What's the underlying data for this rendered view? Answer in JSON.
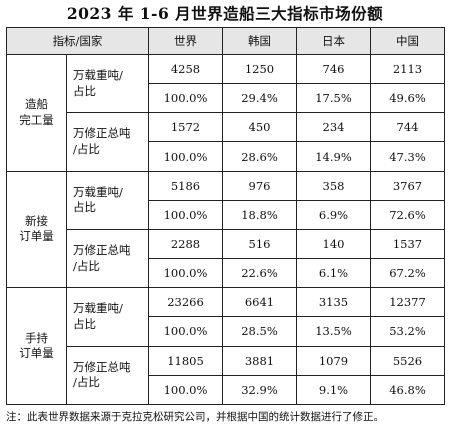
{
  "title": "2023 年 1-6 月世界造船三大指标市场份额",
  "headers": [
    "指标/国家",
    "世界",
    "韩国",
    "日本",
    "中国"
  ],
  "groups": [
    {
      "label": "造船\n完工量",
      "subs": [
        {
          "label": "万载重吨/\n占比",
          "values": [
            "4258",
            "1250",
            "746",
            "2113"
          ],
          "shares": [
            "100.0%",
            "29.4%",
            "17.5%",
            "49.6%"
          ]
        },
        {
          "label": "万修正总吨\n/占比",
          "values": [
            "1572",
            "450",
            "234",
            "744"
          ],
          "shares": [
            "100.0%",
            "28.6%",
            "14.9%",
            "47.3%"
          ]
        }
      ]
    },
    {
      "label": "新接\n订单量",
      "subs": [
        {
          "label": "万载重吨/\n占比",
          "values": [
            "5186",
            "976",
            "358",
            "3767"
          ],
          "shares": [
            "100.0%",
            "18.8%",
            "6.9%",
            "72.6%"
          ]
        },
        {
          "label": "万修正总吨\n/占比",
          "values": [
            "2288",
            "516",
            "140",
            "1537"
          ],
          "shares": [
            "100.0%",
            "22.6%",
            "6.1%",
            "67.2%"
          ]
        }
      ]
    },
    {
      "label": "手持\n订单量",
      "subs": [
        {
          "label": "万载重吨/\n占比",
          "values": [
            "23266",
            "6641",
            "3135",
            "12377"
          ],
          "shares": [
            "100.0%",
            "28.5%",
            "13.5%",
            "53.2%"
          ]
        },
        {
          "label": "万修正总吨\n/占比",
          "values": [
            "11805",
            "3881",
            "1079",
            "5526"
          ],
          "shares": [
            "100.0%",
            "32.9%",
            "9.1%",
            "46.8%"
          ]
        }
      ]
    }
  ],
  "note": "注：此表世界数据来源于克拉克松研究公司，并根据中国的统计数据进行了修正。"
}
